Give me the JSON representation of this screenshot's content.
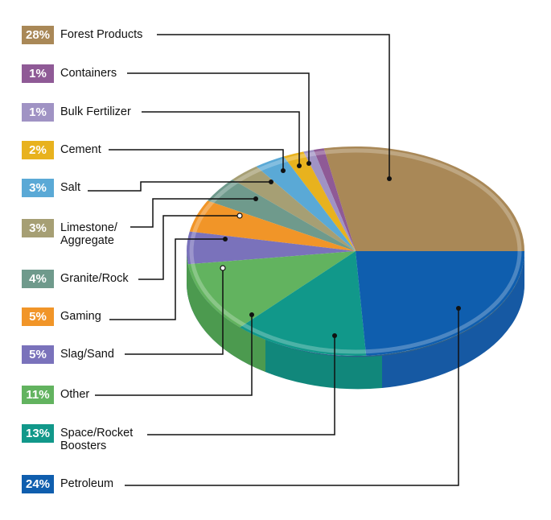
{
  "chart_data": {
    "type": "pie",
    "title": "",
    "style": "3d-pie-with-leader-lines",
    "legend_position": "left",
    "categories": [
      "Forest Products",
      "Containers",
      "Bulk Fertilizer",
      "Cement",
      "Salt",
      "Limestone/Aggregate",
      "Granite/Rock",
      "Gaming",
      "Slag/Sand",
      "Other",
      "Space/Rocket Boosters",
      "Petroleum"
    ],
    "values": [
      28,
      1,
      1,
      2,
      3,
      3,
      4,
      5,
      5,
      11,
      13,
      24
    ],
    "unit": "%"
  },
  "legend": [
    {
      "pct": "28%",
      "label": "Forest Products",
      "color": "#a98857"
    },
    {
      "pct": "1%",
      "label": "Containers",
      "color": "#8f5a96"
    },
    {
      "pct": "1%",
      "label": "Bulk Fertilizer",
      "color": "#a093c4"
    },
    {
      "pct": "2%",
      "label": "Cement",
      "color": "#e8b21e"
    },
    {
      "pct": "3%",
      "label": "Salt",
      "color": "#5aa9d6"
    },
    {
      "pct": "3%",
      "label": "Limestone/\nAggregate",
      "color": "#a69f74"
    },
    {
      "pct": "4%",
      "label": "Granite/Rock",
      "color": "#6f9a8c"
    },
    {
      "pct": "5%",
      "label": "Gaming",
      "color": "#f19528"
    },
    {
      "pct": "5%",
      "label": "Slag/Sand",
      "color": "#7a72bb"
    },
    {
      "pct": "11%",
      "label": "Other",
      "color": "#62b35f"
    },
    {
      "pct": "13%",
      "label": "Space/Rocket\nBoosters",
      "color": "#11988a"
    },
    {
      "pct": "24%",
      "label": "Petroleum",
      "color": "#0f5eae"
    }
  ]
}
